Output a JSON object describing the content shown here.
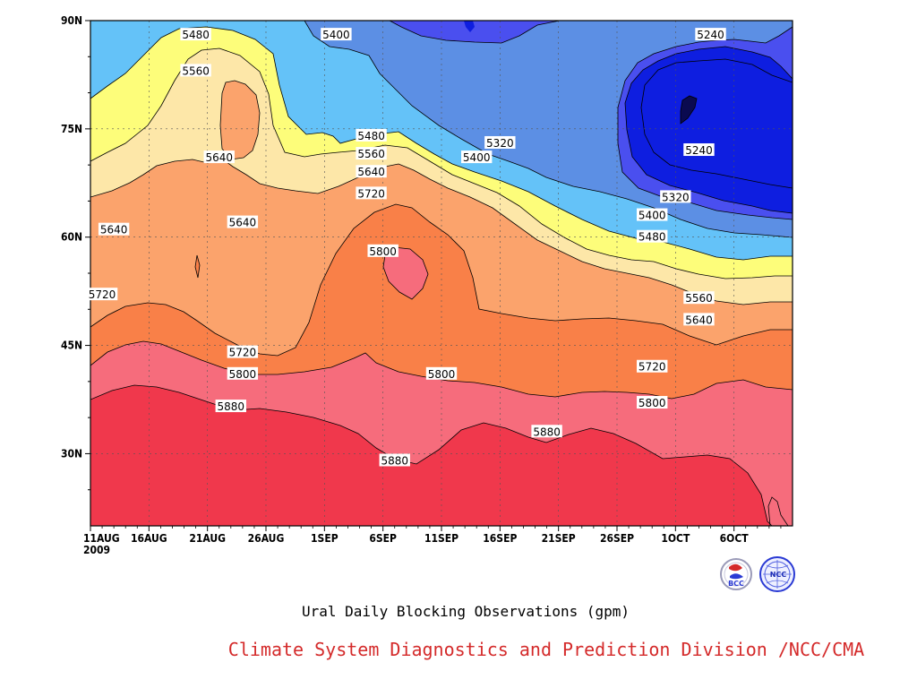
{
  "chart_data": {
    "type": "heatmap",
    "subtype": "filled-contour (time-latitude Hovmoller)",
    "title": "",
    "caption": "Ural Daily Blocking Observations (gpm)",
    "credit": "Climate System Diagnostics and Prediction Division /NCC/CMA",
    "xlabel": "",
    "ylabel": "",
    "x_start_label": "11AUG",
    "x_year_label": "2009",
    "x_ticks": [
      "11AUG",
      "16AUG",
      "21AUG",
      "26AUG",
      "1SEP",
      "6SEP",
      "11SEP",
      "16SEP",
      "21SEP",
      "26SEP",
      "1OCT",
      "6OCT"
    ],
    "x_tick_labels": [
      "11AUG",
      "16AUG",
      "21AUG",
      "26AUG",
      "1SEP",
      "6SEP",
      "11SEP",
      "16SEP",
      "21SEP",
      "26SEP",
      "1OCT",
      "6OCT"
    ],
    "xlim": [
      "2009-08-11",
      "2009-10-10"
    ],
    "y_ticks": [
      30,
      45,
      60,
      75,
      90
    ],
    "y_tick_labels": [
      "30N",
      "45N",
      "60N",
      "75N",
      "90N"
    ],
    "ylim": [
      20,
      90
    ],
    "units": "gpm",
    "contour_levels": [
      5240,
      5320,
      5400,
      5480,
      5560,
      5640,
      5720,
      5800,
      5880
    ],
    "level_colors": [
      "#0e1ee0",
      "#4a4fef",
      "#5c8fe4",
      "#64c2f8",
      "#fdfd7a",
      "#fde7a8",
      "#fba36c",
      "#f98048",
      "#f66c7c",
      "#f0384c"
    ],
    "contour_labels": [
      {
        "text": "5480",
        "date": "2009-08-20",
        "lat": 88
      },
      {
        "text": "5560",
        "date": "2009-08-20",
        "lat": 83
      },
      {
        "text": "5640",
        "date": "2009-08-22",
        "lat": 71
      },
      {
        "text": "5400",
        "date": "2009-09-01",
        "lat": 88
      },
      {
        "text": "5240",
        "date": "2009-10-03",
        "lat": 88
      },
      {
        "text": "5320",
        "date": "2009-09-15",
        "lat": 73
      },
      {
        "text": "5400",
        "date": "2009-09-13",
        "lat": 71
      },
      {
        "text": "5480",
        "date": "2009-09-04",
        "lat": 74
      },
      {
        "text": "5560",
        "date": "2009-09-04",
        "lat": 71.5
      },
      {
        "text": "5640",
        "date": "2009-09-04",
        "lat": 69
      },
      {
        "text": "5720",
        "date": "2009-09-04",
        "lat": 66
      },
      {
        "text": "5800",
        "date": "2009-09-05",
        "lat": 58
      },
      {
        "text": "5240",
        "date": "2009-10-02",
        "lat": 72
      },
      {
        "text": "5320",
        "date": "2009-09-30",
        "lat": 65.5
      },
      {
        "text": "5400",
        "date": "2009-09-28",
        "lat": 63
      },
      {
        "text": "5480",
        "date": "2009-09-28",
        "lat": 60
      },
      {
        "text": "5640",
        "date": "2009-08-13",
        "lat": 61
      },
      {
        "text": "5640",
        "date": "2009-08-24",
        "lat": 62
      },
      {
        "text": "5720",
        "date": "2009-08-12",
        "lat": 52
      },
      {
        "text": "5560",
        "date": "2009-10-02",
        "lat": 51.5
      },
      {
        "text": "5640",
        "date": "2009-10-02",
        "lat": 48.5
      },
      {
        "text": "5720",
        "date": "2009-08-24",
        "lat": 44
      },
      {
        "text": "5800",
        "date": "2009-08-24",
        "lat": 41
      },
      {
        "text": "5880",
        "date": "2009-08-23",
        "lat": 36.5
      },
      {
        "text": "5800",
        "date": "2009-09-10",
        "lat": 41
      },
      {
        "text": "5720",
        "date": "2009-09-28",
        "lat": 42
      },
      {
        "text": "5800",
        "date": "2009-09-28",
        "lat": 37
      },
      {
        "text": "5880",
        "date": "2009-09-19",
        "lat": 33
      },
      {
        "text": "5880",
        "date": "2009-09-06",
        "lat": 29
      }
    ],
    "grid": true,
    "legend": "none"
  },
  "logos": [
    {
      "name": "bcc-logo",
      "text": "BCC"
    },
    {
      "name": "ncc-logo",
      "text": "NCC"
    }
  ]
}
